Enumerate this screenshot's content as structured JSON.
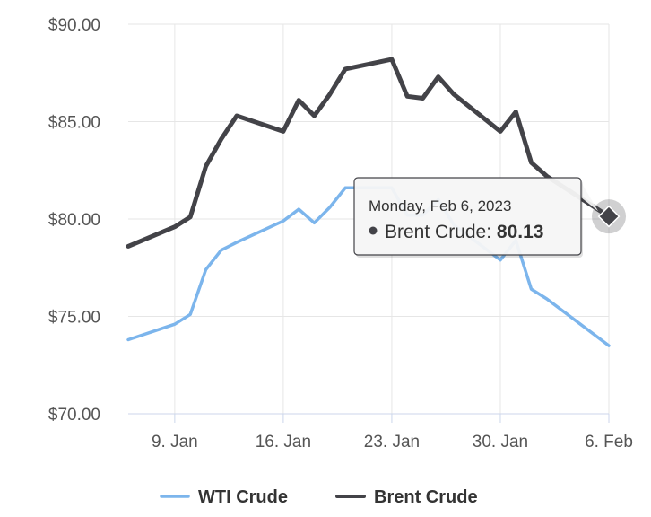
{
  "chart_data": {
    "type": "line",
    "y_axis": {
      "ticks": [
        "$90.00",
        "$85.00",
        "$80.00",
        "$75.00",
        "$70.00"
      ],
      "range": [
        70,
        90
      ]
    },
    "x_axis": {
      "ticks": [
        "9. Jan",
        "16. Jan",
        "23. Jan",
        "30. Jan",
        "6. Feb"
      ],
      "range": [
        "2023-01-06",
        "2023-02-06"
      ]
    },
    "grid": true,
    "legend_position": "bottom",
    "series": [
      {
        "name": "WTI Crude",
        "color": "#7cb5ec",
        "points": [
          [
            "2023-01-06",
            73.8
          ],
          [
            "2023-01-09",
            74.6
          ],
          [
            "2023-01-10",
            75.1
          ],
          [
            "2023-01-11",
            77.4
          ],
          [
            "2023-01-12",
            78.4
          ],
          [
            "2023-01-13",
            78.8
          ],
          [
            "2023-01-16",
            79.9
          ],
          [
            "2023-01-17",
            80.5
          ],
          [
            "2023-01-18",
            79.8
          ],
          [
            "2023-01-19",
            80.6
          ],
          [
            "2023-01-20",
            81.6
          ],
          [
            "2023-01-23",
            81.6
          ],
          [
            "2023-01-24",
            80.2
          ],
          [
            "2023-01-25",
            80.2
          ],
          [
            "2023-01-26",
            81.0
          ],
          [
            "2023-01-27",
            79.7
          ],
          [
            "2023-01-30",
            77.9
          ],
          [
            "2023-01-31",
            78.9
          ],
          [
            "2023-02-01",
            76.4
          ],
          [
            "2023-02-02",
            75.9
          ],
          [
            "2023-02-06",
            73.5
          ]
        ]
      },
      {
        "name": "Brent Crude",
        "color": "#434348",
        "points": [
          [
            "2023-01-06",
            78.6
          ],
          [
            "2023-01-09",
            79.6
          ],
          [
            "2023-01-10",
            80.1
          ],
          [
            "2023-01-11",
            82.7
          ],
          [
            "2023-01-12",
            84.1
          ],
          [
            "2023-01-13",
            85.3
          ],
          [
            "2023-01-16",
            84.5
          ],
          [
            "2023-01-17",
            86.1
          ],
          [
            "2023-01-18",
            85.3
          ],
          [
            "2023-01-19",
            86.4
          ],
          [
            "2023-01-20",
            87.7
          ],
          [
            "2023-01-23",
            88.2
          ],
          [
            "2023-01-24",
            86.3
          ],
          [
            "2023-01-25",
            86.2
          ],
          [
            "2023-01-26",
            87.3
          ],
          [
            "2023-01-27",
            86.4
          ],
          [
            "2023-01-30",
            84.5
          ],
          [
            "2023-01-31",
            85.5
          ],
          [
            "2023-02-01",
            82.9
          ],
          [
            "2023-02-02",
            82.2
          ],
          [
            "2023-02-06",
            80.13
          ]
        ]
      }
    ],
    "tooltip": {
      "date": "Monday, Feb 6, 2023",
      "series": "Brent Crude",
      "value": "80.13"
    }
  }
}
